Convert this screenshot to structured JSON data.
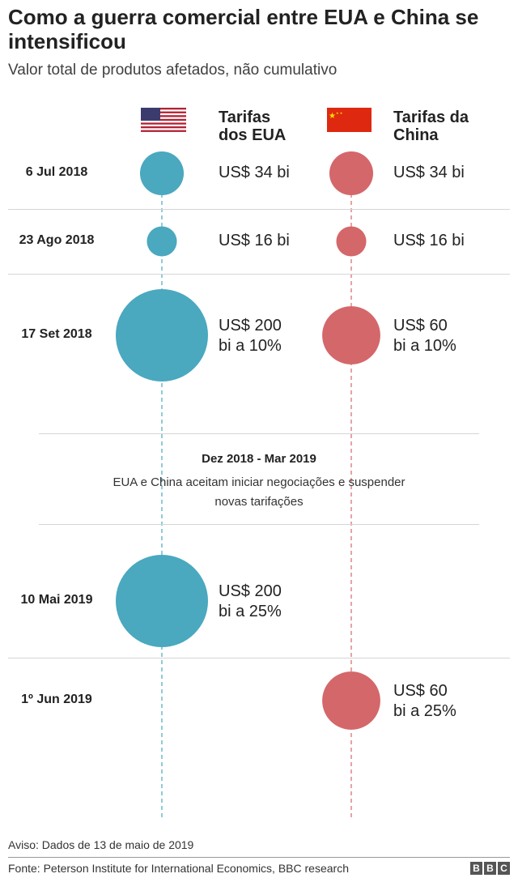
{
  "title": "Como a guerra comercial entre EUA e China se intensificou",
  "subtitle": "Valor total de produtos afetados, não cumulativo",
  "chart_data": {
    "type": "bubble-timeline",
    "unit": "US$ bilhões",
    "columns": [
      {
        "name": "Tarifas dos EUA",
        "line1": "Tarifas",
        "line2": "dos EUA",
        "color": "#4aa8bf",
        "flag": "us-flag"
      },
      {
        "name": "Tarifas da China",
        "line1": "Tarifas da",
        "line2": "China",
        "color": "#d4676a",
        "flag": "china-flag"
      }
    ],
    "events": [
      {
        "date": "6 Jul 2018",
        "us": {
          "value": 34,
          "label1": "US$ 34 bi",
          "label2": ""
        },
        "china": {
          "value": 34,
          "label1": "US$ 34 bi",
          "label2": ""
        }
      },
      {
        "date": "23 Ago 2018",
        "us": {
          "value": 16,
          "label1": "US$ 16 bi",
          "label2": ""
        },
        "china": {
          "value": 16,
          "label1": "US$ 16 bi",
          "label2": ""
        }
      },
      {
        "date": "17 Set 2018",
        "us": {
          "value": 200,
          "label1": "US$ 200",
          "label2": "bi a 10%"
        },
        "china": {
          "value": 60,
          "label1": "US$ 60",
          "label2": "bi a 10%"
        }
      },
      {
        "date": "10 Mai 2019",
        "us": {
          "value": 200,
          "label1": "US$ 200",
          "label2": "bi a 25%"
        },
        "china": null
      },
      {
        "date": "1º Jun 2019",
        "us": null,
        "china": {
          "value": 60,
          "label1": "US$ 60",
          "label2": "bi a 25%"
        }
      }
    ],
    "pause": {
      "period": "Dez 2018 - Mar 2019",
      "text": "EUA e China aceitam iniciar negociações e suspender novas tarifações"
    }
  },
  "note": "Aviso: Dados de 13 de maio de 2019",
  "source": "Fonte: Peterson Institute for International Economics, BBC research",
  "logo": [
    "B",
    "B",
    "C"
  ]
}
